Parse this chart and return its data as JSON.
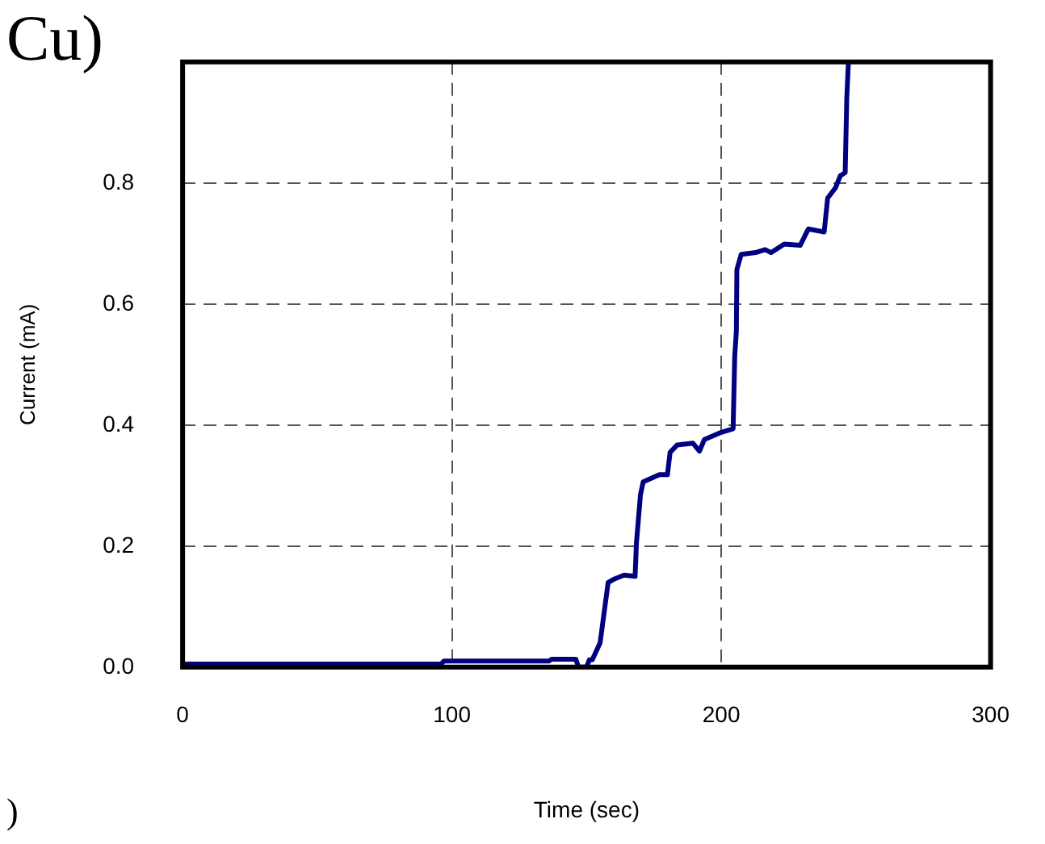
{
  "chart_data": {
    "type": "line",
    "xlabel": "Time (sec)",
    "ylabel": "Current (mA)",
    "annotations": [
      "Cu)",
      ")"
    ],
    "xlim": [
      0,
      300
    ],
    "xticks": [
      0,
      100,
      200,
      300
    ],
    "ylim": [
      0,
      1.0
    ],
    "yticks": [
      {
        "value": 0,
        "label": "0.0"
      },
      0.2,
      0.4,
      0.6,
      0.8
    ],
    "grid": true,
    "legend": false,
    "marker": "none",
    "line_style": "solid",
    "series": [
      {
        "color": "#000080",
        "x": [
          0,
          96,
          97,
          136,
          137,
          146,
          147,
          150,
          151,
          152.1,
          155,
          156.5,
          158,
          160,
          163.9,
          168,
          168.5,
          170,
          171,
          177,
          180,
          181,
          183.6,
          189.5,
          191.9,
          193.7,
          200,
          204.4,
          205,
          205.6,
          205.8,
          207.4,
          212.7,
          216.3,
          218.5,
          223.4,
          229.3,
          232.3,
          238.2,
          239.5,
          242.4,
          244.2,
          246,
          246.6,
          247.2
        ],
        "values": [
          0.005,
          0.005,
          0.01,
          0.01,
          0.013,
          0.013,
          0.0,
          0.0,
          0.012,
          0.012,
          0.04,
          0.09,
          0.14,
          0.145,
          0.152,
          0.15,
          0.205,
          0.285,
          0.306,
          0.318,
          0.318,
          0.355,
          0.367,
          0.37,
          0.357,
          0.376,
          0.388,
          0.394,
          0.514,
          0.555,
          0.657,
          0.682,
          0.685,
          0.69,
          0.685,
          0.699,
          0.697,
          0.724,
          0.719,
          0.775,
          0.792,
          0.812,
          0.817,
          0.94,
          1.0
        ]
      }
    ]
  }
}
